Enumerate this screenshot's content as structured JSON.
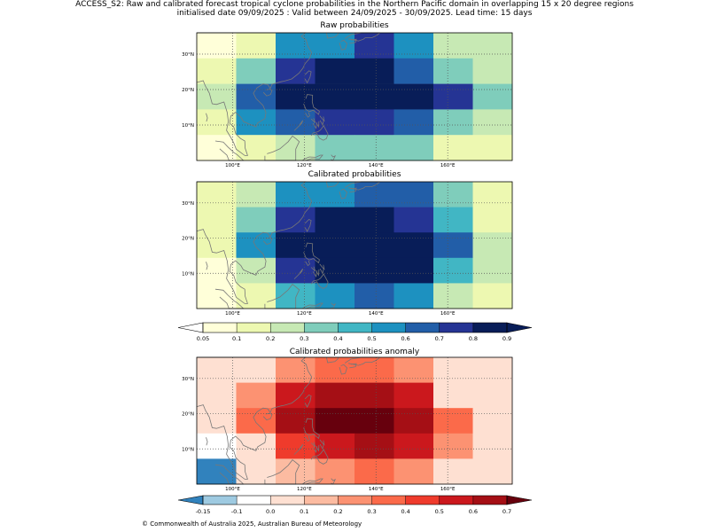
{
  "header": {
    "line1": "ACCESS_S2: Raw and calibrated forecast tropical cyclone probabilities in the Northern Pacific domain in overlapping 15 x 20 degree regions",
    "line2": "initialised date 09/09/2025 :  Valid between 24/09/2025 - 30/09/2025. Lead time: 15 days"
  },
  "footer": {
    "copyright": "© Commonwealth of Australia 2025, Australian Bureau of Meteorology"
  },
  "chart_data": [
    {
      "type": "heatmap",
      "title": "Raw probabilities",
      "x_ticks": [
        "100°E",
        "120°E",
        "140°E",
        "160°E"
      ],
      "y_ticks": [
        "10°N",
        "20°N",
        "30°N"
      ],
      "grid": "dotted",
      "values": [
        [
          0.05,
          0.15,
          0.55,
          0.55,
          0.75,
          0.55,
          0.25,
          0.25
        ],
        [
          0.15,
          0.35,
          0.75,
          0.85,
          0.85,
          0.65,
          0.35,
          0.25
        ],
        [
          0.25,
          0.65,
          0.95,
          1.0,
          1.0,
          0.95,
          0.75,
          0.35
        ],
        [
          0.15,
          0.55,
          0.65,
          0.75,
          0.75,
          0.65,
          0.35,
          0.25
        ],
        [
          0.05,
          0.15,
          0.25,
          0.35,
          0.35,
          0.35,
          0.15,
          0.1
        ]
      ]
    },
    {
      "type": "heatmap",
      "title": "Calibrated probabilities",
      "x_ticks": [
        "100°E",
        "120°E",
        "140°E",
        "160°E"
      ],
      "y_ticks": [
        "10°N",
        "20°N",
        "30°N"
      ],
      "grid": "dotted",
      "values": [
        [
          0.15,
          0.25,
          0.55,
          0.55,
          0.65,
          0.65,
          0.35,
          0.15
        ],
        [
          0.15,
          0.35,
          0.75,
          0.85,
          0.85,
          0.75,
          0.45,
          0.15
        ],
        [
          0.15,
          0.55,
          0.95,
          1.0,
          1.0,
          0.95,
          0.65,
          0.25
        ],
        [
          0.05,
          0.25,
          0.75,
          0.85,
          0.95,
          0.85,
          0.45,
          0.25
        ],
        [
          0.05,
          0.15,
          0.45,
          0.55,
          0.65,
          0.55,
          0.25,
          0.15
        ]
      ]
    },
    {
      "type": "heatmap",
      "title": "Calibrated probabilities anomaly",
      "x_ticks": [
        "100°E",
        "120°E",
        "140°E",
        "160°E"
      ],
      "y_ticks": [
        "10°N",
        "20°N",
        "30°N"
      ],
      "grid": "dotted",
      "values": [
        [
          0.0,
          0.05,
          0.25,
          0.35,
          0.35,
          0.25,
          0.0,
          0.0
        ],
        [
          0.0,
          0.25,
          0.55,
          0.65,
          0.65,
          0.55,
          0.05,
          0.0
        ],
        [
          0.0,
          0.35,
          0.65,
          0.75,
          0.75,
          0.65,
          0.35,
          0.0
        ],
        [
          -0.1,
          0.05,
          0.45,
          0.55,
          0.65,
          0.55,
          0.25,
          0.0
        ],
        [
          -0.2,
          0.0,
          0.15,
          0.25,
          0.35,
          0.25,
          0.05,
          0.0
        ]
      ]
    }
  ],
  "colorbars": [
    {
      "ticks": [
        "0.05",
        "0.1",
        "0.2",
        "0.3",
        "0.4",
        "0.5",
        "0.6",
        "0.7",
        "0.8",
        "0.9"
      ],
      "colors": [
        "#ffffff",
        "#ffffd9",
        "#edf8b1",
        "#c7e9b4",
        "#7fcdbb",
        "#41b6c4",
        "#1d91c0",
        "#225ea8",
        "#253494",
        "#081d58",
        "#081d58"
      ]
    },
    {
      "ticks": [
        "-0.15",
        "-0.1",
        "0.0",
        "0.1",
        "0.2",
        "0.3",
        "0.4",
        "0.5",
        "0.6",
        "0.7"
      ],
      "colors": [
        "#3182bd",
        "#9ecae1",
        "#ffffff",
        "#fee0d2",
        "#fcbba1",
        "#fc9272",
        "#fb6a4a",
        "#ef3b2c",
        "#cb181d",
        "#a50f15",
        "#67000d"
      ]
    }
  ]
}
